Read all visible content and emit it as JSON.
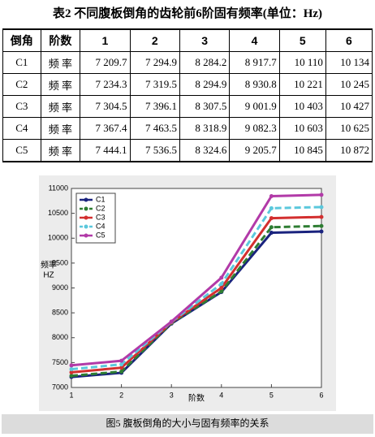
{
  "title": "表2 不同腹板倒角的齿轮前6阶固有频率(单位：Hz)",
  "table": {
    "header": [
      "倒角",
      "阶数",
      "1",
      "2",
      "3",
      "4",
      "5",
      "6"
    ],
    "rows": [
      [
        "C1",
        "频 率",
        "7 209.7",
        "7 294.9",
        "8 284.2",
        "8 917.7",
        "10 110",
        "10 134"
      ],
      [
        "C2",
        "频 率",
        "7 234.3",
        "7 319.5",
        "8 294.9",
        "8 930.8",
        "10 221",
        "10 245"
      ],
      [
        "C3",
        "频 率",
        "7 304.5",
        "7 396.1",
        "8 307.5",
        "9 001.9",
        "10 403",
        "10 427"
      ],
      [
        "C4",
        "频 率",
        "7 367.4",
        "7 463.5",
        "8 318.9",
        "9 082.3",
        "10 603",
        "10 625"
      ],
      [
        "C5",
        "频 率",
        "7 444.1",
        "7 536.5",
        "8 324.6",
        "9 205.7",
        "10 845",
        "10 872"
      ]
    ]
  },
  "chart_data": {
    "type": "line",
    "x_label": "阶数",
    "y_label": [
      "频率",
      "HZ"
    ],
    "x": [
      1,
      2,
      3,
      4,
      5,
      6
    ],
    "series": [
      {
        "name": "C1",
        "color": "#1a237e",
        "style": "solid",
        "values": [
          7209.7,
          7294.9,
          8284.2,
          8917.7,
          10110,
          10134
        ]
      },
      {
        "name": "C2",
        "color": "#2e7d32",
        "style": "dashed",
        "values": [
          7234.3,
          7319.5,
          8294.9,
          8930.8,
          10221,
          10245
        ]
      },
      {
        "name": "C3",
        "color": "#d32f2f",
        "style": "solid",
        "values": [
          7304.5,
          7396.1,
          8307.5,
          9001.9,
          10403,
          10427
        ]
      },
      {
        "name": "C4",
        "color": "#5bc8dc",
        "style": "dashed",
        "values": [
          7367.4,
          7463.5,
          8318.9,
          9082.3,
          10603,
          10625
        ]
      },
      {
        "name": "C5",
        "color": "#b23aa8",
        "style": "solid",
        "values": [
          7444.1,
          7536.5,
          8324.6,
          9205.7,
          10845,
          10872
        ]
      }
    ],
    "xlim": [
      1,
      6
    ],
    "xticks": [
      1,
      2,
      3,
      4,
      5,
      6
    ],
    "ylim": [
      7000,
      11000
    ],
    "yticks": [
      7000,
      7500,
      8000,
      8500,
      9000,
      9500,
      10000,
      10500,
      11000
    ],
    "legend": "upper-left"
  },
  "caption": "图5 腹板倒角的大小与固有频率的关系"
}
